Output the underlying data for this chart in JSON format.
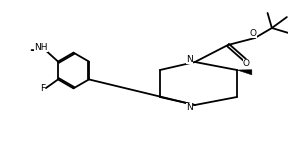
{
  "bg_color": "#ffffff",
  "line_color": "#000000",
  "lw": 1.3,
  "fig_width": 2.88,
  "fig_height": 1.41,
  "dpi": 100,
  "xlim": [
    0,
    10
  ],
  "ylim": [
    0,
    4.9
  ]
}
